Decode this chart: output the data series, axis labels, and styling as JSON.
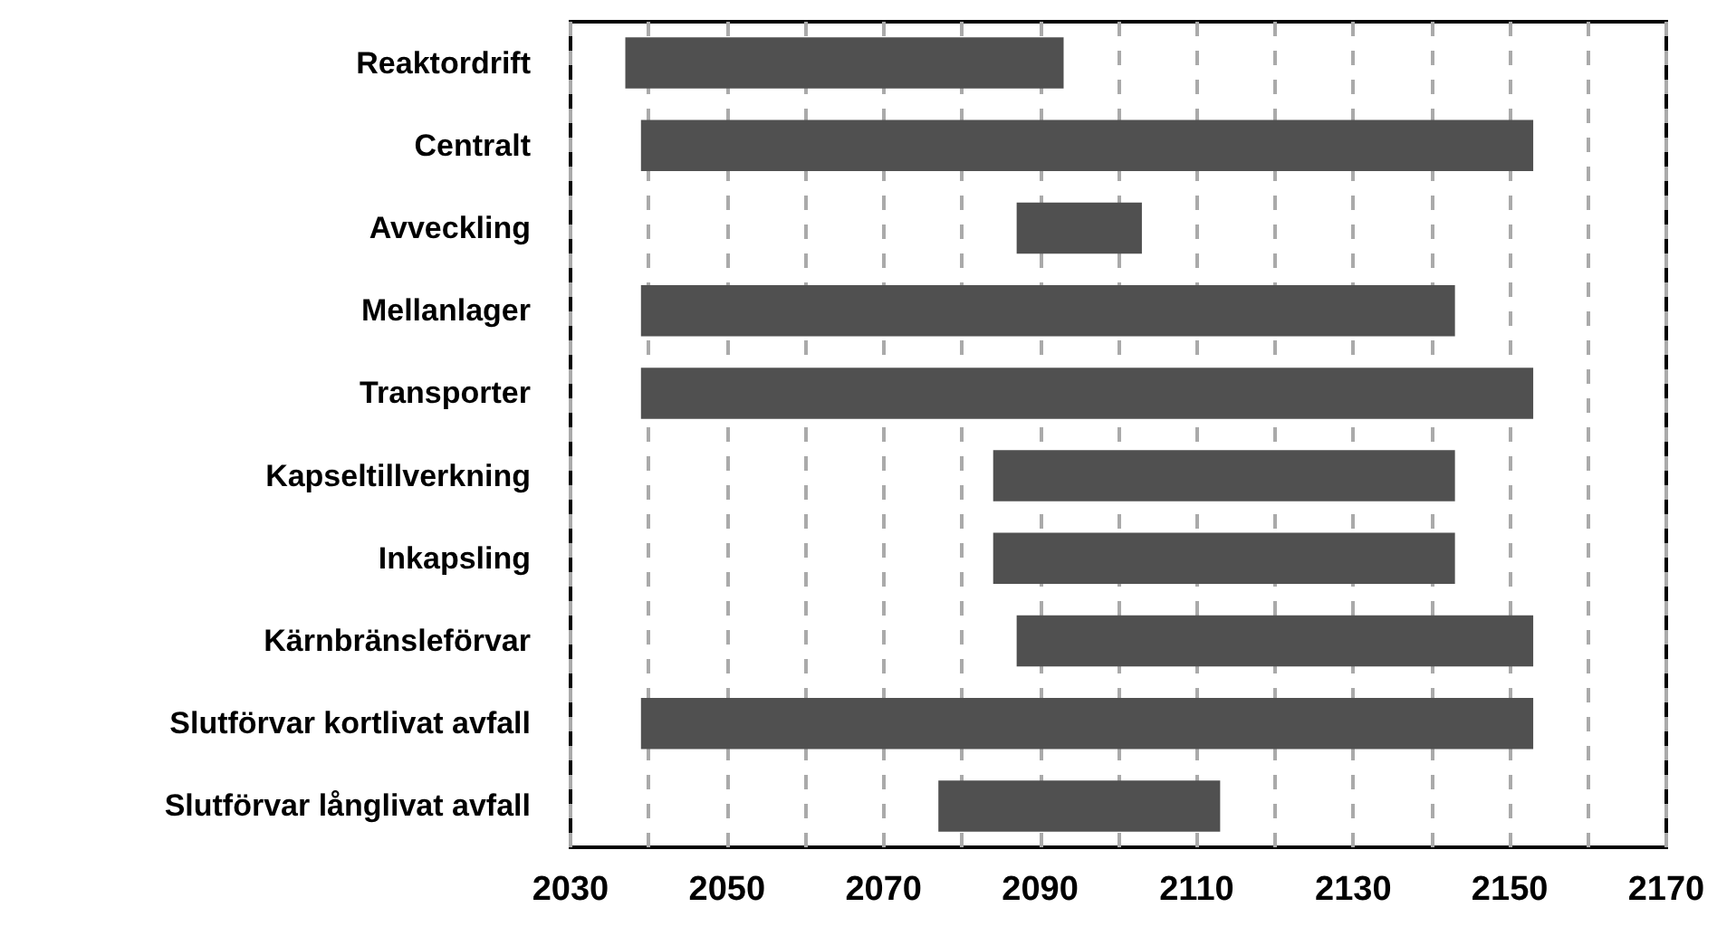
{
  "chart_data": {
    "type": "bar",
    "orientation": "horizontal",
    "categories": [
      "Reaktordrift",
      "Centralt",
      "Avveckling",
      "Mellanlager",
      "Transporter",
      "Kapseltillverkning",
      "Inkapsling",
      "Kärnbränsleförvar",
      "Slutförvar kortlivat avfall",
      "Slutförvar långlivat avfall"
    ],
    "base": [
      2037,
      2039,
      2087,
      2039,
      2039,
      2084,
      2084,
      2087,
      2039,
      2077
    ],
    "values": [
      56,
      114,
      16,
      104,
      114,
      59,
      59,
      66,
      114,
      36
    ],
    "color": "#505050",
    "xlim": [
      2030,
      2170
    ],
    "xticks": [
      2030,
      {
        "value": 2040,
        "label": null
      },
      2050,
      {
        "value": 2060,
        "label": null
      },
      2070,
      {
        "value": 2080,
        "label": null
      },
      2090,
      {
        "value": 2100,
        "label": null
      },
      2110,
      {
        "value": 2120,
        "label": null
      },
      2130,
      {
        "value": 2140,
        "label": null
      },
      2150,
      {
        "value": 2160,
        "label": null
      },
      2170
    ],
    "grid": "x"
  }
}
